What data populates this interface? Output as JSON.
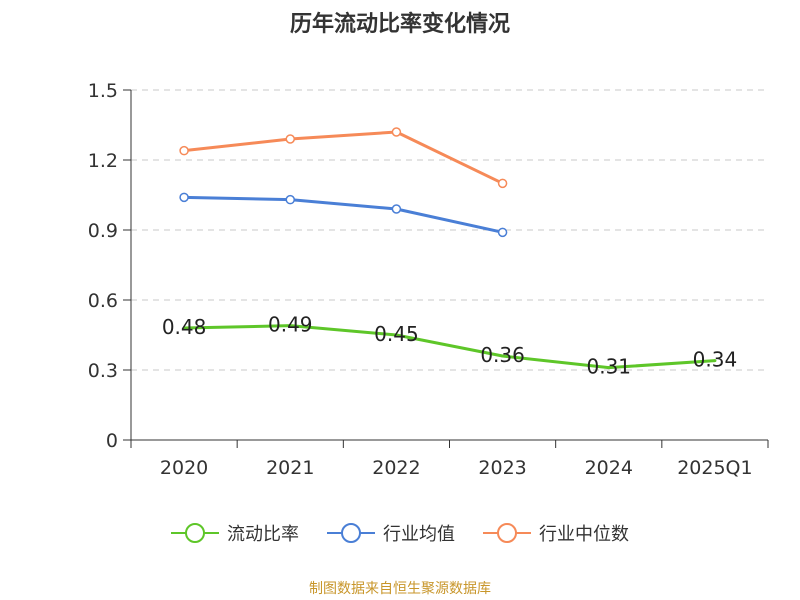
{
  "chart_data": {
    "type": "line",
    "title": "历年流动比率变化情况",
    "categories": [
      "2020",
      "2021",
      "2022",
      "2023",
      "2024",
      "2025Q1"
    ],
    "ylim": [
      0,
      1.5
    ],
    "yticks": [
      0,
      0.3,
      0.6,
      0.9,
      1.2,
      1.5
    ],
    "ytick_labels": [
      "0",
      "0.3",
      "0.6",
      "0.9",
      "1.2",
      "1.5"
    ],
    "grid": true,
    "legend_position": "bottom",
    "series": [
      {
        "name": "流动比率",
        "color": "#5ec629",
        "values": [
          0.48,
          0.49,
          0.45,
          0.36,
          0.31,
          0.34
        ],
        "labels": [
          "0.48",
          "0.49",
          "0.45",
          "0.36",
          "0.31",
          "0.34"
        ],
        "show_labels": true,
        "markers": false
      },
      {
        "name": "行业均值",
        "color": "#4a7fd6",
        "values": [
          1.04,
          1.03,
          0.99,
          0.89,
          null,
          null
        ],
        "show_labels": false,
        "markers": true
      },
      {
        "name": "行业中位数",
        "color": "#f68a58",
        "values": [
          1.24,
          1.29,
          1.32,
          1.1,
          null,
          null
        ],
        "show_labels": false,
        "markers": true
      }
    ]
  },
  "footer": {
    "source": "制图数据来自恒生聚源数据库"
  }
}
